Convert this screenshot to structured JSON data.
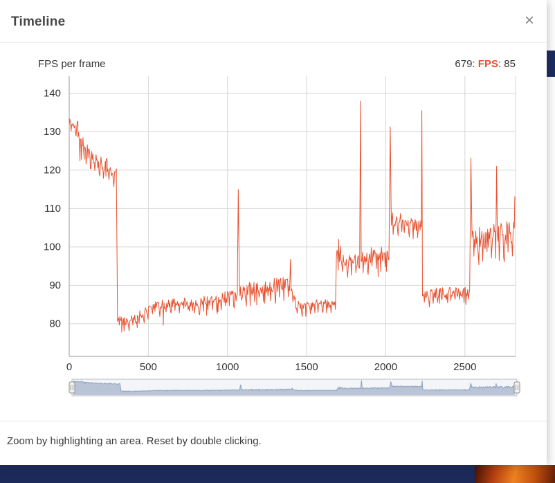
{
  "modal": {
    "title": "Timeline",
    "close_label": "×",
    "footer_hint": "Zoom by highlighting an area. Reset by double clicking."
  },
  "chart_data": {
    "type": "line",
    "title": "FPS per frame",
    "xlabel": "",
    "ylabel": "",
    "xlim": [
      0,
      2820
    ],
    "ylim": [
      71.5,
      144.5
    ],
    "xticks": [
      0,
      500,
      1000,
      1500,
      2000,
      2500
    ],
    "yticks": [
      80,
      90,
      100,
      110,
      120,
      130,
      140
    ],
    "grid": true,
    "legend_position": "top-right",
    "legend": {
      "frame_prefix": "679: ",
      "series_label": "FPS",
      "value_suffix": ": 85"
    },
    "current_point": {
      "frame": 679,
      "fps": 85
    },
    "navigator_ylim": [
      60,
      140
    ],
    "colors": {
      "series": "#e8512f",
      "grid": "#d6d6d6",
      "axis": "#9a9a9a",
      "tick_text": "#333333",
      "navigator_fill": "#b9c4d6",
      "navigator_line": "#8fa3c0",
      "navigator_track": "#f3f5f8",
      "navigator_border": "#b9bdc4",
      "handle_fill": "#f2f2f2",
      "handle_border": "#8e8e8e",
      "bottom_bar": "#1b2a5a",
      "bg_tile": "#1b2b5f",
      "flame": [
        "#421104",
        "#b6400f",
        "#ee8221",
        "#c2500f",
        "#5e1d06"
      ]
    },
    "segments": [
      {
        "x0": 0,
        "x1": 55,
        "f0": 132.5,
        "f1": 131.5,
        "j": 1.2
      },
      {
        "x0": 55,
        "x1": 95,
        "f0": 128.5,
        "f1": 126.0,
        "j": 2.2
      },
      {
        "x0": 95,
        "x1": 150,
        "f0": 126.0,
        "f1": 123.5,
        "j": 1.8
      },
      {
        "x0": 150,
        "x1": 240,
        "f0": 122.5,
        "f1": 121.5,
        "j": 1.8
      },
      {
        "x0": 240,
        "x1": 298,
        "f0": 120.5,
        "f1": 119.0,
        "j": 1.5
      },
      {
        "x0": 298,
        "x1": 305,
        "f0": 117.0,
        "f1": 83.0,
        "j": 0.5
      },
      {
        "x0": 305,
        "x1": 335,
        "f0": 81.5,
        "f1": 80.5,
        "j": 1.2
      },
      {
        "x0": 335,
        "x1": 430,
        "f0": 80.6,
        "f1": 81.4,
        "j": 1.2
      },
      {
        "x0": 430,
        "x1": 530,
        "f0": 82.0,
        "f1": 84.2,
        "j": 1.2
      },
      {
        "x0": 530,
        "x1": 600,
        "f0": 84.6,
        "f1": 85.2,
        "j": 1.2
      },
      {
        "x0": 600,
        "x1": 780,
        "f0": 85.2,
        "f1": 85.8,
        "j": 1.3
      },
      {
        "x0": 780,
        "x1": 1000,
        "f0": 85.8,
        "f1": 87.0,
        "j": 1.6
      },
      {
        "x0": 1000,
        "x1": 1062,
        "f0": 87.0,
        "f1": 87.5,
        "j": 1.6
      },
      {
        "x0": 1075,
        "x1": 1260,
        "f0": 88.5,
        "f1": 89.8,
        "j": 2.0
      },
      {
        "x0": 1260,
        "x1": 1392,
        "f0": 89.8,
        "f1": 90.3,
        "j": 2.0
      },
      {
        "x0": 1402,
        "x1": 1428,
        "f0": 89.5,
        "f1": 85.8,
        "j": 1.2
      },
      {
        "x0": 1428,
        "x1": 1560,
        "f0": 84.8,
        "f1": 84.8,
        "j": 1.2
      },
      {
        "x0": 1560,
        "x1": 1682,
        "f0": 85.1,
        "f1": 85.5,
        "j": 1.2
      },
      {
        "x0": 1688,
        "x1": 1715,
        "f0": 97.0,
        "f1": 98.2,
        "j": 2.2
      },
      {
        "x0": 1715,
        "x1": 1835,
        "f0": 96.8,
        "f1": 96.0,
        "j": 2.0
      },
      {
        "x0": 1845,
        "x1": 2020,
        "f0": 97.2,
        "f1": 98.6,
        "j": 2.2
      },
      {
        "x0": 2035,
        "x1": 2105,
        "f0": 107.2,
        "f1": 107.6,
        "j": 2.0
      },
      {
        "x0": 2105,
        "x1": 2225,
        "f0": 106.8,
        "f1": 105.0,
        "j": 1.8
      },
      {
        "x0": 2232,
        "x1": 2530,
        "f0": 87.8,
        "f1": 88.3,
        "j": 1.4
      },
      {
        "x0": 2545,
        "x1": 2695,
        "f0": 102.5,
        "f1": 103.0,
        "j": 3.3
      },
      {
        "x0": 2705,
        "x1": 2812,
        "f0": 102.5,
        "f1": 104.0,
        "j": 3.3
      }
    ],
    "spike_points": [
      [
        68,
        122.4
      ],
      [
        78,
        122.8
      ],
      [
        232,
        118.4
      ],
      [
        332,
        77.8
      ],
      [
        594,
        79.6
      ],
      [
        868,
        82.2
      ],
      [
        935,
        82.6
      ],
      [
        1068,
        115.0
      ],
      [
        1185,
        84.9
      ],
      [
        1302,
        85.3
      ],
      [
        1398,
        96.8
      ],
      [
        1495,
        81.9
      ],
      [
        1702,
        102.0
      ],
      [
        1840,
        138.0
      ],
      [
        1952,
        92.3
      ],
      [
        2028,
        131.3
      ],
      [
        2228,
        135.5
      ],
      [
        2340,
        85.3
      ],
      [
        2538,
        123.2
      ],
      [
        2700,
        121.0
      ],
      [
        2815,
        113.2
      ]
    ]
  }
}
